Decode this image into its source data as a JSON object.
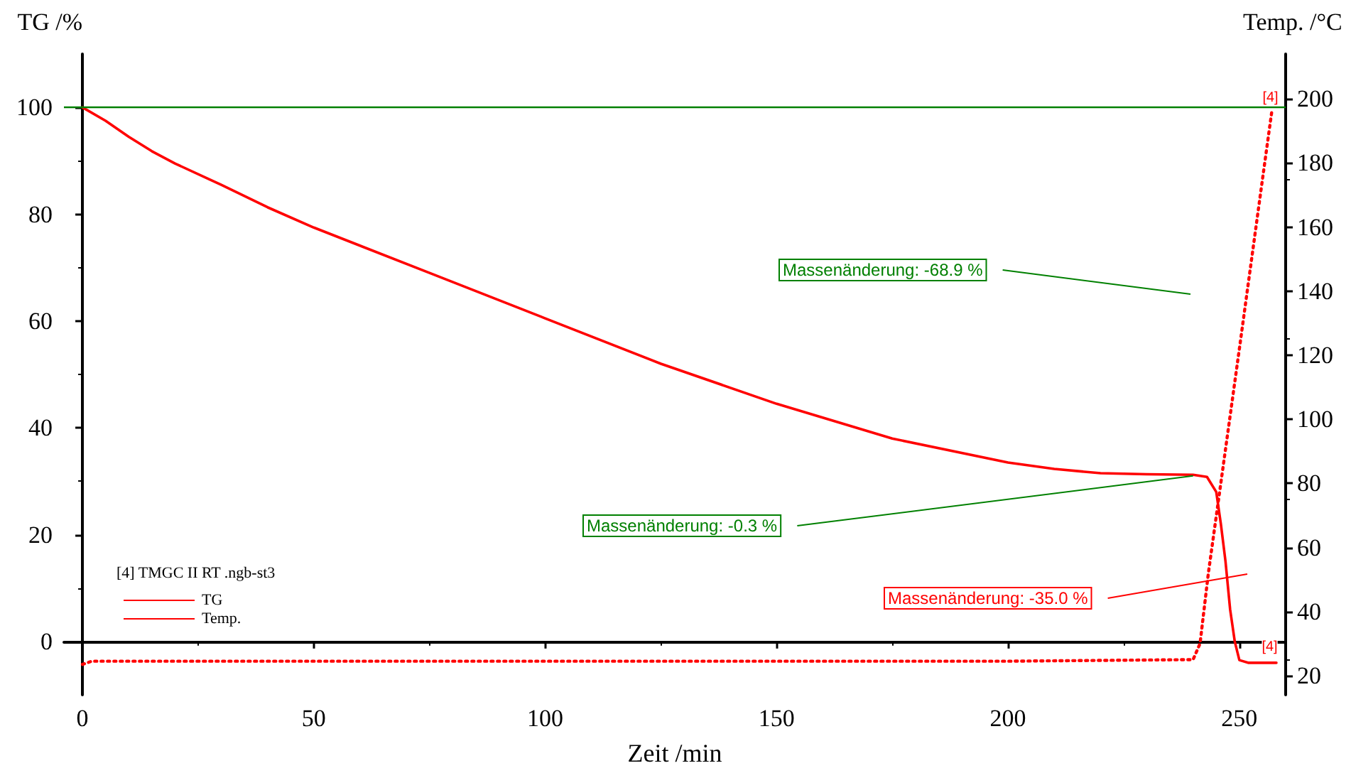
{
  "chart_data": {
    "type": "line",
    "xlabel": "Zeit /min",
    "ylabel": "TG /%",
    "y2label": "Temp. /°C",
    "legend_title": "[4] TMGC II RT .ngb-st3",
    "xlim": [
      -4,
      260
    ],
    "xticks": [
      0,
      50,
      100,
      150,
      200,
      250
    ],
    "ylim": [
      -10,
      110
    ],
    "yticks": [
      0,
      20,
      40,
      60,
      80,
      100
    ],
    "y2lim": [
      14,
      214
    ],
    "y2ticks": [
      20,
      40,
      60,
      80,
      100,
      120,
      140,
      160,
      180,
      200
    ],
    "grid": false,
    "legend": "bottom left",
    "marker": "none",
    "series": [
      {
        "name": "TG",
        "color": "#ff0000",
        "line_style": "solid",
        "x": [
          0,
          5,
          10,
          15,
          20,
          30,
          40,
          50,
          75,
          100,
          125,
          150,
          175,
          200,
          210,
          220,
          230,
          240,
          243,
          245,
          246,
          247,
          248,
          249,
          250,
          252,
          255,
          258
        ],
        "values": [
          100,
          97.5,
          94.5,
          91.8,
          89.5,
          85.5,
          81.3,
          77.5,
          69,
          60.5,
          52,
          44.5,
          38,
          33.5,
          32.3,
          31.5,
          31.3,
          31.2,
          30.8,
          28,
          22,
          15,
          6,
          0,
          -3.5,
          -4,
          -4,
          -4
        ]
      },
      {
        "name": "Temp.",
        "color": "#ff0000",
        "line_style": "dotted",
        "axis": "y2",
        "x": [
          0,
          2,
          50,
          100,
          150,
          200,
          240,
          241.5,
          243.3,
          245.7,
          250,
          255,
          257
        ],
        "values": [
          23.5,
          24.5,
          24.5,
          24.5,
          24.5,
          24.5,
          25,
          30,
          52,
          77,
          122,
          175,
          196
        ]
      }
    ],
    "ref_lines": [
      {
        "axis": "y",
        "value": 100,
        "color": "#008000",
        "line_style": "solid"
      }
    ],
    "annotations": [
      "Massenänderung: -68.9 %",
      {
        "text": "Massenänderung: -0.3 %",
        "x": 240,
        "y": 31
      },
      "Massenänderung: -35.0 %",
      {
        "text": "[4]",
        "x": 255,
        "y": 101
      },
      {
        "text": "[4]",
        "x": 253,
        "y": -4
      }
    ]
  }
}
